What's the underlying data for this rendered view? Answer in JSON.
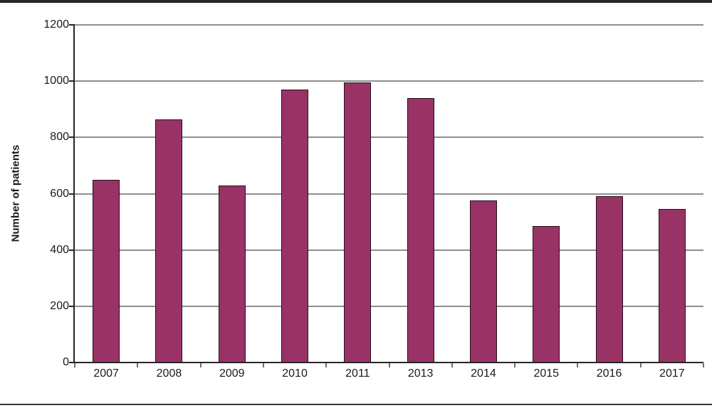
{
  "figure": {
    "background": "#ffffff",
    "top_border_color": "#262626",
    "bottom_border_color": "#3a3a3a"
  },
  "chart_data": {
    "type": "bar",
    "title": "",
    "xlabel": "",
    "ylabel": "Number of patients",
    "categories": [
      "2007",
      "2008",
      "2009",
      "2010",
      "2011",
      "2013",
      "2014",
      "2015",
      "2016",
      "2017"
    ],
    "values": [
      650,
      865,
      630,
      970,
      995,
      940,
      575,
      485,
      590,
      545
    ],
    "ylim": [
      0,
      1200
    ],
    "yticks": [
      0,
      200,
      400,
      600,
      800,
      1000,
      1200
    ],
    "grid": true,
    "legend": false,
    "bar_color": "#993366",
    "bar_border_color": "#241019",
    "gridline_color": "#8f8f8f",
    "axis_color": "#262626",
    "x_tick_color": "#6f6f6f",
    "tick_label_color": "#1a1a1a"
  }
}
